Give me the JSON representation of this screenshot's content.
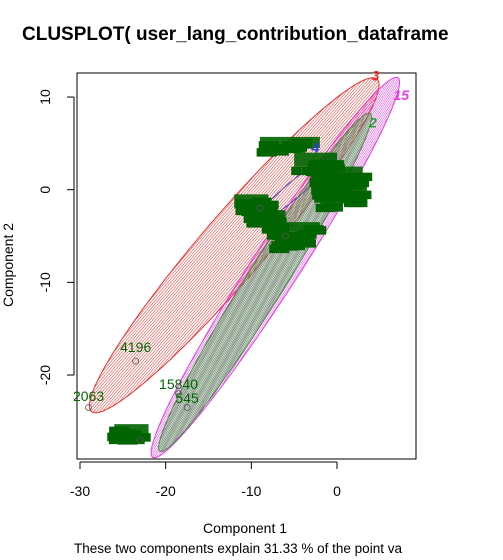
{
  "chart_data": {
    "type": "scatter",
    "title": "CLUSPLOT( user_lang_contribution_dataframe",
    "xlabel": "Component 1",
    "ylabel": "Component 2",
    "subtitle": "These two components explain 31.33 % of the point va",
    "xlim": [
      -31.5,
      9.5
    ],
    "ylim": [
      -30,
      13.5
    ],
    "x_ticks": [
      -30,
      -20,
      -10,
      0
    ],
    "x_tick_labels": [
      "-30",
      "-20",
      "-10",
      "0"
    ],
    "y_ticks": [
      -20,
      -10,
      0,
      10
    ],
    "y_tick_labels": [
      "-20",
      "-10",
      "0",
      "10"
    ],
    "clusters": [
      {
        "id": "3",
        "color": "#e8302c",
        "label_x": 4.5,
        "label_y": 11.8,
        "center": [
          -12,
          -6
        ],
        "semi_axes": [
          24.5,
          3.6
        ],
        "angle_deg": 47
      },
      {
        "id": "15",
        "color": "#e040e0",
        "label_x": 7.5,
        "label_y": 9.7,
        "center": [
          -7.2,
          -8.4
        ],
        "semi_axes": [
          25,
          2.7
        ],
        "angle_deg": 55
      },
      {
        "id": "2",
        "color": "#28a028",
        "label_x": 4.2,
        "label_y": 6.7,
        "center": [
          -8.4,
          -10
        ],
        "semi_axes": [
          22,
          2.2
        ],
        "angle_deg": 56
      },
      {
        "id": "4",
        "color": "#2040e0",
        "label_x": -2.5,
        "label_y": 4.0,
        "center": [
          -5,
          0
        ],
        "semi_axes": [
          6,
          0.9
        ],
        "angle_deg": 38
      }
    ],
    "point_labels": [
      {
        "text": "4196",
        "x": -23.5,
        "y": -17.5
      },
      {
        "text": "2063",
        "x": -29,
        "y": -22.8
      },
      {
        "text": "15840",
        "x": -18.5,
        "y": -21.5
      },
      {
        "text": "545",
        "x": -17.5,
        "y": -23
      }
    ],
    "point_color": "#006400"
  }
}
